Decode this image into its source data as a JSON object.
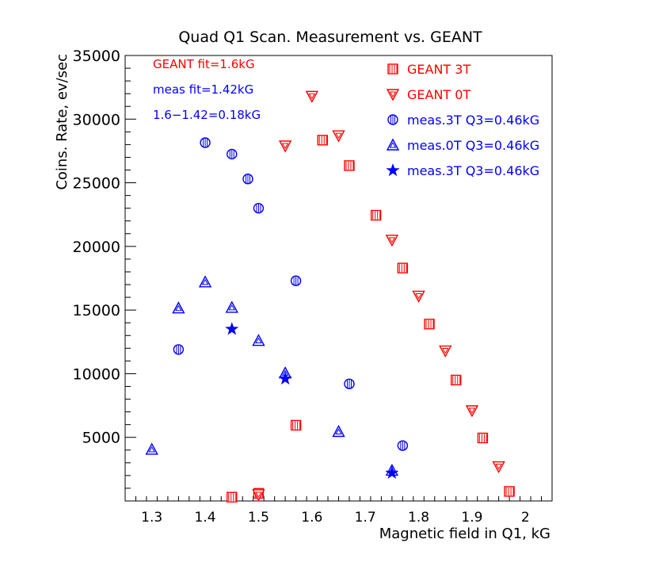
{
  "chart_data": {
    "type": "scatter",
    "title": "Quad Q1 Scan. Measurement vs. GEANT",
    "xlabel": "Magnetic field in Q1, kG",
    "ylabel": "Coins. Rate, ev/sec",
    "xlim": [
      1.25,
      2.05
    ],
    "ylim": [
      0,
      35000
    ],
    "x_ticks": [
      1.3,
      1.4,
      1.5,
      1.6,
      1.7,
      1.8,
      1.9,
      2.0
    ],
    "x_tick_labels": [
      "1.3",
      "1.4",
      "1.5",
      "1.6",
      "1.7",
      "1.8",
      "1.9",
      "2"
    ],
    "y_ticks": [
      5000,
      10000,
      15000,
      20000,
      25000,
      30000,
      35000
    ],
    "y_tick_labels": [
      "5000",
      "10000",
      "15000",
      "20000",
      "25000",
      "30000",
      "35000"
    ],
    "grid": false,
    "legend_position": "top-right",
    "annotations": [
      {
        "text": "GEANT fit=1.6kG",
        "color": "#ff0000"
      },
      {
        "text": "meas fit=1.42kG",
        "color": "#0000ff"
      },
      {
        "text": "1.6−1.42=0.18kG",
        "color": "#0000ff"
      }
    ],
    "series": [
      {
        "name": "GEANT 3T",
        "marker": "square",
        "color": "#ff0000",
        "x": [
          1.45,
          1.5,
          1.57,
          1.62,
          1.67,
          1.72,
          1.77,
          1.82,
          1.87,
          1.92,
          1.97
        ],
        "y": [
          300,
          600,
          5950,
          28350,
          26350,
          22450,
          18300,
          13900,
          9500,
          4950,
          750
        ]
      },
      {
        "name": "GEANT 0T",
        "marker": "triangle-down",
        "color": "#ff0000",
        "x": [
          1.5,
          1.55,
          1.6,
          1.65,
          1.75,
          1.8,
          1.85,
          1.9,
          1.95
        ],
        "y": [
          500,
          27900,
          31800,
          28700,
          20500,
          16100,
          11800,
          7100,
          2700
        ]
      },
      {
        "name": "meas.3T Q3=0.46kG",
        "marker": "circle",
        "color": "#0000ff",
        "x": [
          1.35,
          1.4,
          1.45,
          1.48,
          1.5,
          1.57,
          1.67,
          1.77
        ],
        "y": [
          11900,
          28150,
          27250,
          25300,
          23000,
          17300,
          9200,
          4350
        ]
      },
      {
        "name": "meas.0T Q3=0.46kG",
        "marker": "triangle-up",
        "color": "#0000ff",
        "x": [
          1.3,
          1.35,
          1.4,
          1.45,
          1.5,
          1.55,
          1.65,
          1.75
        ],
        "y": [
          4050,
          15150,
          17200,
          15200,
          12600,
          10050,
          5450,
          2400
        ]
      },
      {
        "name": "meas.3T Q3=0.46kG",
        "marker": "star",
        "color": "#0000ff",
        "x": [
          1.45,
          1.55,
          1.75
        ],
        "y": [
          13500,
          9600,
          2200
        ]
      }
    ]
  }
}
